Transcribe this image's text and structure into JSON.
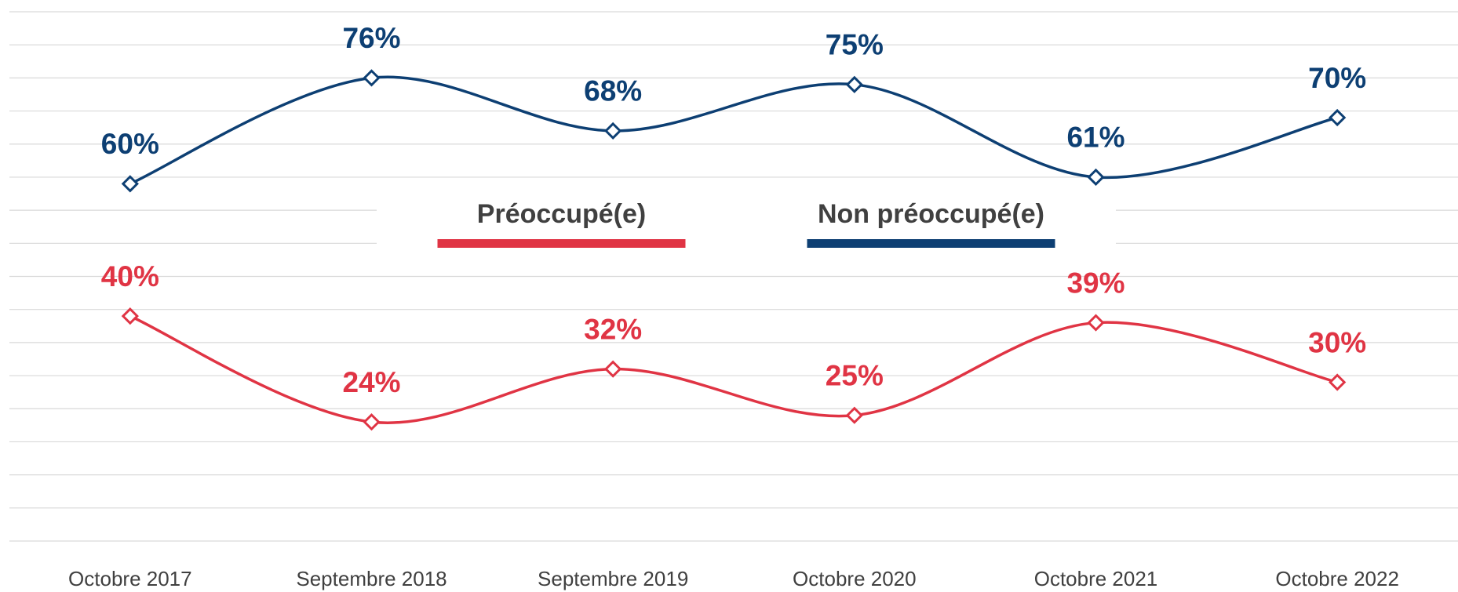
{
  "chart_data": {
    "type": "line",
    "categories": [
      "Octobre 2017",
      "Septembre 2018",
      "Septembre 2019",
      "Octobre 2020",
      "Octobre 2021",
      "Octobre 2022"
    ],
    "series": [
      {
        "name": "Préoccupé(e)",
        "color": "#e03444",
        "values": [
          40,
          24,
          32,
          25,
          39,
          30
        ]
      },
      {
        "name": "Non préoccupé(e)",
        "color": "#0d3f73",
        "values": [
          60,
          76,
          68,
          75,
          61,
          70
        ]
      }
    ],
    "value_labels": [
      [
        "40%",
        "24%",
        "32%",
        "25%",
        "39%",
        "30%"
      ],
      [
        "60%",
        "76%",
        "68%",
        "75%",
        "61%",
        "70%"
      ]
    ],
    "ylim": [
      6,
      86
    ],
    "yticks": [
      6,
      11,
      16,
      21,
      26,
      31,
      36,
      41,
      46,
      51,
      56,
      61,
      66,
      71,
      76,
      81,
      86
    ],
    "grid": true,
    "smooth": true,
    "legend": "center"
  }
}
